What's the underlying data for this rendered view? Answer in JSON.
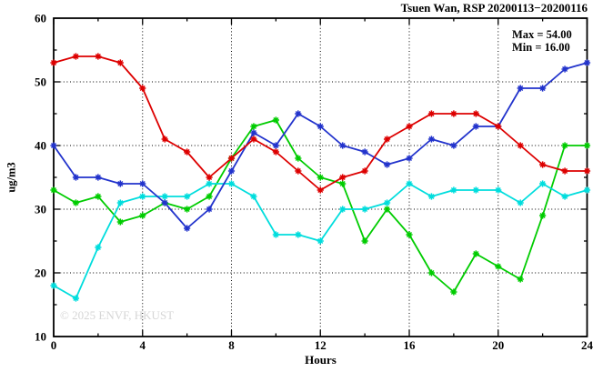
{
  "chart_data": {
    "type": "line",
    "title": "Tsuen Wan, RSP 20200113−20200116",
    "annotation": {
      "max": "Max = 54.00",
      "min": "Min = 16.00"
    },
    "xlabel": "Hours",
    "ylabel": "ug/m3",
    "watermark": "© 2025 ENVF, HKUST",
    "xlim": [
      0,
      24
    ],
    "ylim": [
      10,
      60
    ],
    "xticks": [
      0,
      4,
      8,
      12,
      16,
      20,
      24
    ],
    "yticks": [
      10,
      20,
      30,
      40,
      50,
      60
    ],
    "x_minor_step": 2,
    "y_minor_step": 5,
    "grid_x": [
      4,
      8,
      12,
      16,
      20
    ],
    "grid_y": [
      20,
      30,
      40,
      50
    ],
    "grid": true,
    "legend_position": "none",
    "marker": "asterisk",
    "x": [
      0,
      1,
      2,
      3,
      4,
      5,
      6,
      7,
      8,
      9,
      10,
      11,
      12,
      13,
      14,
      15,
      16,
      17,
      18,
      19,
      20,
      21,
      22,
      23,
      24
    ],
    "series": [
      {
        "name": "red",
        "color": "#dd0000",
        "values": [
          53,
          54,
          54,
          53,
          49,
          41,
          39,
          35,
          38,
          41,
          39,
          36,
          33,
          35,
          36,
          41,
          43,
          45,
          45,
          45,
          43,
          40,
          37,
          36,
          36
        ]
      },
      {
        "name": "blue",
        "color": "#2233cc",
        "values": [
          40,
          35,
          35,
          34,
          34,
          31,
          27,
          30,
          36,
          42,
          40,
          45,
          43,
          40,
          39,
          37,
          38,
          41,
          40,
          43,
          43,
          49,
          49,
          52,
          53
        ]
      },
      {
        "name": "green",
        "color": "#00cc00",
        "values": [
          33,
          31,
          32,
          28,
          29,
          31,
          30,
          32,
          38,
          43,
          44,
          38,
          35,
          34,
          25,
          30,
          26,
          20,
          17,
          23,
          21,
          19,
          29,
          40,
          40
        ]
      },
      {
        "name": "cyan",
        "color": "#00dddd",
        "values": [
          18,
          16,
          24,
          31,
          32,
          32,
          32,
          34,
          34,
          32,
          26,
          26,
          25,
          30,
          30,
          31,
          34,
          32,
          33,
          33,
          33,
          31,
          34,
          32,
          33
        ]
      }
    ],
    "draw_order": [
      2,
      3,
      1,
      0
    ],
    "colors": {
      "axis": "#000000",
      "grid": "#000000",
      "watermark": "#d6d6d6",
      "background": "#ffffff"
    }
  }
}
